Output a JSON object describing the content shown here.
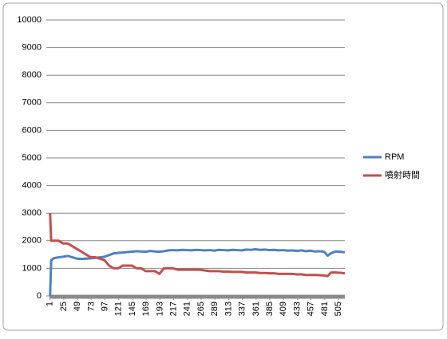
{
  "chart_data": {
    "type": "line",
    "x": [
      1,
      3,
      8,
      16,
      24,
      32,
      40,
      48,
      56,
      64,
      72,
      80,
      88,
      96,
      104,
      112,
      120,
      128,
      136,
      144,
      152,
      160,
      168,
      176,
      184,
      192,
      200,
      208,
      216,
      224,
      232,
      240,
      248,
      256,
      264,
      272,
      280,
      288,
      296,
      304,
      312,
      320,
      328,
      336,
      344,
      352,
      360,
      368,
      376,
      384,
      392,
      400,
      408,
      416,
      424,
      432,
      440,
      448,
      456,
      464,
      472,
      480,
      486,
      492,
      500,
      508,
      516
    ],
    "series": [
      {
        "name": "RPM",
        "color": "#4f81bd",
        "values": [
          0,
          1300,
          1370,
          1400,
          1420,
          1450,
          1400,
          1350,
          1340,
          1350,
          1360,
          1380,
          1400,
          1420,
          1480,
          1540,
          1560,
          1570,
          1590,
          1600,
          1620,
          1610,
          1600,
          1630,
          1610,
          1600,
          1620,
          1650,
          1660,
          1650,
          1670,
          1660,
          1650,
          1670,
          1660,
          1650,
          1660,
          1640,
          1670,
          1660,
          1650,
          1670,
          1660,
          1650,
          1680,
          1670,
          1690,
          1670,
          1680,
          1660,
          1670,
          1650,
          1660,
          1640,
          1650,
          1630,
          1650,
          1620,
          1640,
          1610,
          1620,
          1600,
          1460,
          1550,
          1610,
          1600,
          1580
        ]
      },
      {
        "name": "噴射時間",
        "color": "#c0504d",
        "values": [
          3000,
          2000,
          2000,
          2000,
          1900,
          1900,
          1800,
          1700,
          1600,
          1500,
          1400,
          1400,
          1350,
          1300,
          1100,
          1000,
          1000,
          1100,
          1100,
          1100,
          1000,
          1000,
          900,
          900,
          900,
          800,
          1000,
          1000,
          1000,
          950,
          950,
          950,
          950,
          950,
          950,
          920,
          900,
          900,
          900,
          880,
          880,
          870,
          870,
          870,
          850,
          850,
          850,
          830,
          830,
          820,
          820,
          800,
          800,
          800,
          800,
          780,
          780,
          760,
          760,
          760,
          750,
          740,
          720,
          850,
          850,
          840,
          820
        ]
      }
    ],
    "xlim": [
      0,
      516
    ],
    "xticks": [
      1,
      25,
      49,
      73,
      97,
      121,
      145,
      169,
      193,
      217,
      241,
      265,
      289,
      313,
      337,
      361,
      385,
      409,
      433,
      457,
      481,
      505
    ],
    "ylim": [
      0,
      10000
    ],
    "yticks": [
      0,
      1000,
      2000,
      3000,
      4000,
      5000,
      6000,
      7000,
      8000,
      9000,
      10000
    ],
    "grid": true,
    "legend": "right"
  }
}
